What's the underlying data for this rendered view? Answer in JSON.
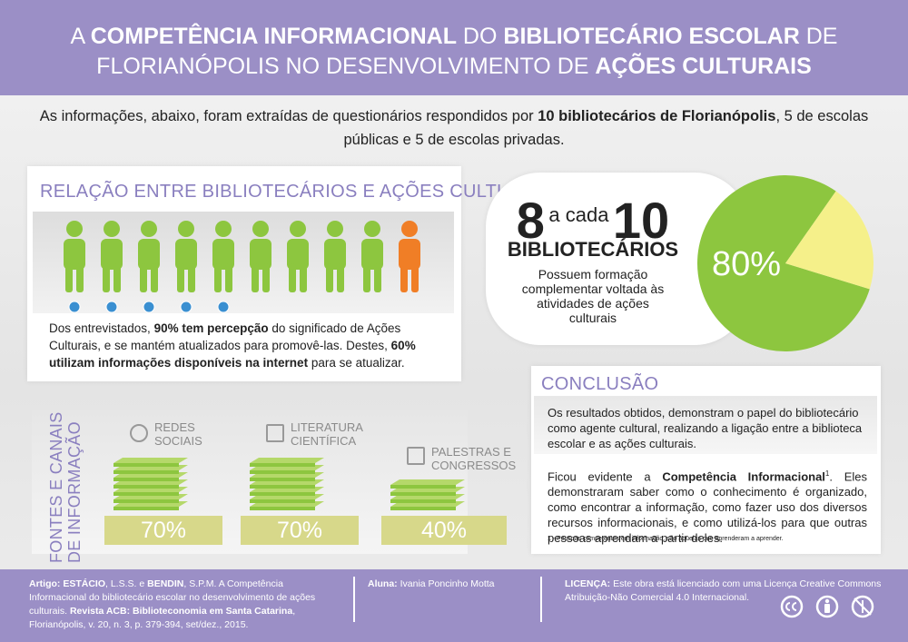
{
  "header": {
    "title": [
      {
        "t": "A "
      },
      {
        "t": "COMPETÊNCIA INFORMACIONAL",
        "b": true
      },
      {
        "t": " DO "
      },
      {
        "t": "BIBLIOTECÁRIO ESCOLAR",
        "b": true
      },
      {
        "t": " DE FLORIANÓPOLIS NO DESENVOLVIMENTO DE "
      },
      {
        "t": "AÇÕES CULTURAIS",
        "b": true
      }
    ]
  },
  "intro": [
    {
      "t": "As informações, abaixo, foram extraídas de questionários respondidos por "
    },
    {
      "t": "10 bibliotecários de Florianópolis",
      "b": true
    },
    {
      "t": ", 5 de escolas públicas e 5 de escolas privadas."
    }
  ],
  "relation": {
    "heading": "RELAÇÃO ENTRE BIBLIOTECÁRIOS E AÇÕES CULTURAIS",
    "text": [
      {
        "t": "Dos entrevistados, "
      },
      {
        "t": "90% tem percepção",
        "b": true
      },
      {
        "t": " do significado de Ações Culturais, e se mantém atualizados para promovê-las. Destes, "
      },
      {
        "t": "60% utilizam informações disponíveis na internet",
        "b": true
      },
      {
        "t": " para se atualizar."
      }
    ]
  },
  "stat": {
    "big1": "8",
    "mid": "a cada",
    "big2": "10",
    "word": "BIBLIOTECÁRIOS",
    "text": "Possuem formação complementar voltada às atividades de ações culturais",
    "pie": {
      "value": 80,
      "label": "80%"
    }
  },
  "sources": {
    "heading": "FONTES E CANAIS DE INFORMAÇÃO",
    "items": [
      {
        "name": "REDES SOCIAIS",
        "value": 70,
        "label": "70%"
      },
      {
        "name": "LITERATURA CIENTÍFICA",
        "value": 70,
        "label": "70%"
      },
      {
        "name": "PALESTRAS E CONGRESSOS",
        "value": 40,
        "label": "40%"
      }
    ]
  },
  "conclusion": {
    "heading": "CONCLUSÃO",
    "p1": [
      {
        "t": "Os resultados obtidos, demonstram o papel do bibliotecário como agente cultural, realizando a ligação entre a biblioteca escolar e as ações culturais."
      }
    ],
    "p2": [
      {
        "t": "Ficou evidente a "
      },
      {
        "t": "Competência Informacional",
        "b": true
      },
      {
        "t": "1",
        "sup": true
      },
      {
        "t": ". Eles demonstraram saber como o conhecimento é organizado, como encontrar a informação, como fazer uso dos diversos recursos informacionais, e como utilizá-los para que outras pessoas aprendam a partir deles."
      }
    ],
    "footnote": "1 - Pessoas competentes em informação, são aquelas que aprenderam a aprender."
  },
  "footer": {
    "article": [
      {
        "t": "Artigo: ",
        "b": true
      },
      {
        "t": "ESTÁCIO",
        "b": true
      },
      {
        "t": ", L.S.S. e "
      },
      {
        "t": "BENDIN",
        "b": true
      },
      {
        "t": ", S.P.M. A Competência Informacional do bibliotecário escolar no desenvolvimento de ações culturais. "
      },
      {
        "t": "Revista ACB: Biblioteconomia em Santa Catarina",
        "b": true
      },
      {
        "t": ", Florianópolis, v. 20, n. 3, p. 379-394, set/dez., 2015."
      }
    ],
    "student": [
      {
        "t": "Aluna: ",
        "b": true
      },
      {
        "t": "Ivania Poncinho Motta"
      }
    ],
    "license": [
      {
        "t": "LICENÇA: ",
        "b": true
      },
      {
        "t": "Este obra está licenciado com uma Licença Creative Commons Atribuição-Não Comercial 4.0 Internacional."
      }
    ]
  }
}
